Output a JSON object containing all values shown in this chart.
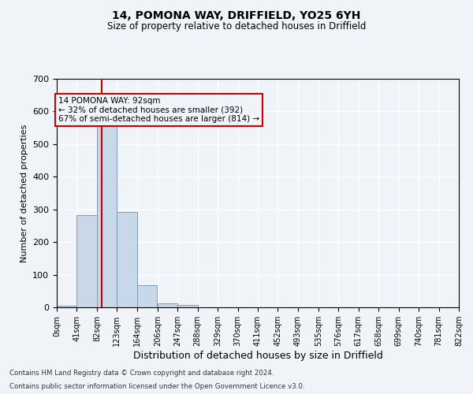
{
  "title1": "14, POMONA WAY, DRIFFIELD, YO25 6YH",
  "title2": "Size of property relative to detached houses in Driffield",
  "xlabel": "Distribution of detached houses by size in Driffield",
  "ylabel": "Number of detached properties",
  "footnote1": "Contains HM Land Registry data © Crown copyright and database right 2024.",
  "footnote2": "Contains public sector information licensed under the Open Government Licence v3.0.",
  "annotation_line1": "14 POMONA WAY: 92sqm",
  "annotation_line2": "← 32% of detached houses are smaller (392)",
  "annotation_line3": "67% of semi-detached houses are larger (814) →",
  "property_size": 92,
  "bin_edges": [
    0,
    41,
    82,
    123,
    164,
    206,
    247,
    288,
    329,
    370,
    411,
    452,
    493,
    535,
    576,
    617,
    658,
    699,
    740,
    781,
    822
  ],
  "bar_heights": [
    5,
    283,
    560,
    291,
    68,
    12,
    7,
    0,
    0,
    0,
    0,
    0,
    0,
    0,
    0,
    0,
    0,
    0,
    0,
    0
  ],
  "bar_color": "#c8d8e8",
  "bar_edge_color": "#7a9abf",
  "red_line_color": "#cc0000",
  "annotation_box_edge_color": "#cc0000",
  "background_color": "#f0f4f8",
  "grid_color": "#ffffff",
  "ylim": [
    0,
    700
  ],
  "yticks": [
    0,
    100,
    200,
    300,
    400,
    500,
    600,
    700
  ]
}
